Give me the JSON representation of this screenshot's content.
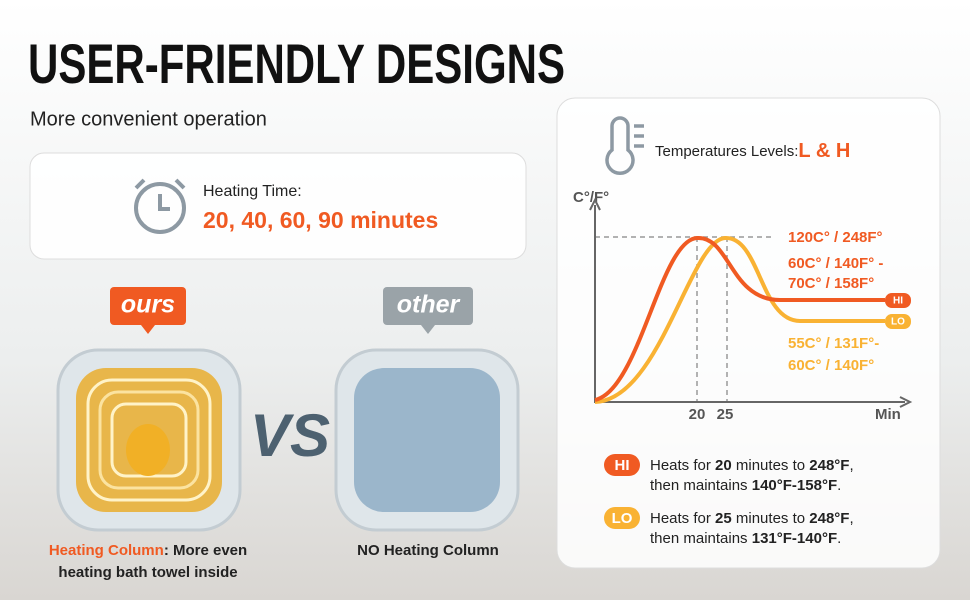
{
  "header": {
    "title": "USER-FRIENDLY DESIGNS",
    "subtitle": "More convenient operation"
  },
  "heating_card": {
    "label": "Heating Time:",
    "value": "20, 40, 60, 90 minutes"
  },
  "comparison": {
    "ours": {
      "badge": "ours",
      "caption_highlight": "Heating Column",
      "caption_lines": [
        ": More even",
        "heating bath towel inside"
      ]
    },
    "vs": "VS",
    "other": {
      "badge": "other",
      "caption": "NO Heating Column"
    }
  },
  "panel": {
    "heading": "Temperatures Levels:",
    "levels": "L & H",
    "y_label": "C°/F°",
    "x_label": "Min",
    "x_ticks": [
      "20",
      "25"
    ],
    "peak": "120C° / 248F°",
    "hi_range": [
      "60C° / 140F° -",
      "70C° / 158F°"
    ],
    "lo_range": [
      "55C° / 131F°-",
      "60C° / 140F°"
    ],
    "hi_tag": "HI",
    "lo_tag": "LO",
    "notes": [
      {
        "badge": "HI",
        "lines": [
          [
            "Heats for ",
            "20",
            " minutes to ",
            "248°F",
            ","
          ],
          [
            "then maintains ",
            "140°F-158°F",
            "."
          ]
        ]
      },
      {
        "badge": "LO",
        "lines": [
          [
            "Heats for ",
            "25",
            " minutes to ",
            "248°F",
            ","
          ],
          [
            "then maintains ",
            "131°F-140°F",
            "."
          ]
        ]
      }
    ]
  }
}
